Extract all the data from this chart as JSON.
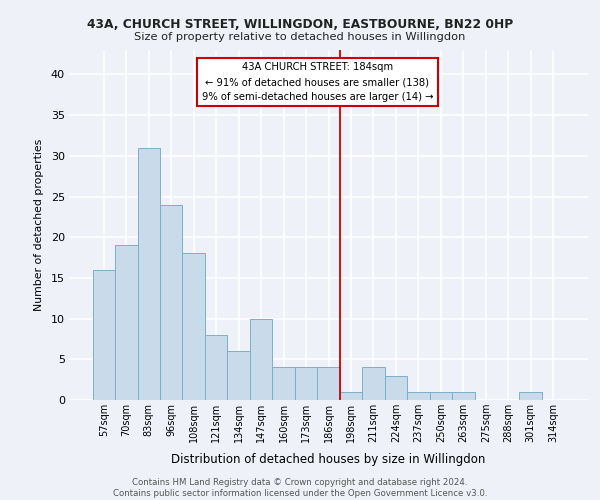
{
  "title1": "43A, CHURCH STREET, WILLINGDON, EASTBOURNE, BN22 0HP",
  "title2": "Size of property relative to detached houses in Willingdon",
  "xlabel": "Distribution of detached houses by size in Willingdon",
  "ylabel": "Number of detached properties",
  "footnote": "Contains HM Land Registry data © Crown copyright and database right 2024.\nContains public sector information licensed under the Open Government Licence v3.0.",
  "bin_labels": [
    "57sqm",
    "70sqm",
    "83sqm",
    "96sqm",
    "108sqm",
    "121sqm",
    "134sqm",
    "147sqm",
    "160sqm",
    "173sqm",
    "186sqm",
    "198sqm",
    "211sqm",
    "224sqm",
    "237sqm",
    "250sqm",
    "263sqm",
    "275sqm",
    "288sqm",
    "301sqm",
    "314sqm"
  ],
  "bar_heights": [
    16,
    19,
    31,
    24,
    18,
    8,
    6,
    10,
    4,
    4,
    4,
    1,
    4,
    3,
    1,
    1,
    1,
    0,
    0,
    1,
    0
  ],
  "bar_color": "#c9daea",
  "bar_edgecolor": "#7aafc8",
  "vline_x": 10.5,
  "annotation_line1": "43A CHURCH STREET: 184sqm",
  "annotation_line2": "← 91% of detached houses are smaller (138)",
  "annotation_line3": "9% of semi-detached houses are larger (14) →",
  "annotation_box_color": "#ffffff",
  "annotation_box_edgecolor": "#cc0000",
  "vline_color": "#cc0000",
  "ylim": [
    0,
    43
  ],
  "yticks": [
    0,
    5,
    10,
    15,
    20,
    25,
    30,
    35,
    40
  ],
  "background_color": "#eef2f8",
  "grid_color": "#ffffff"
}
